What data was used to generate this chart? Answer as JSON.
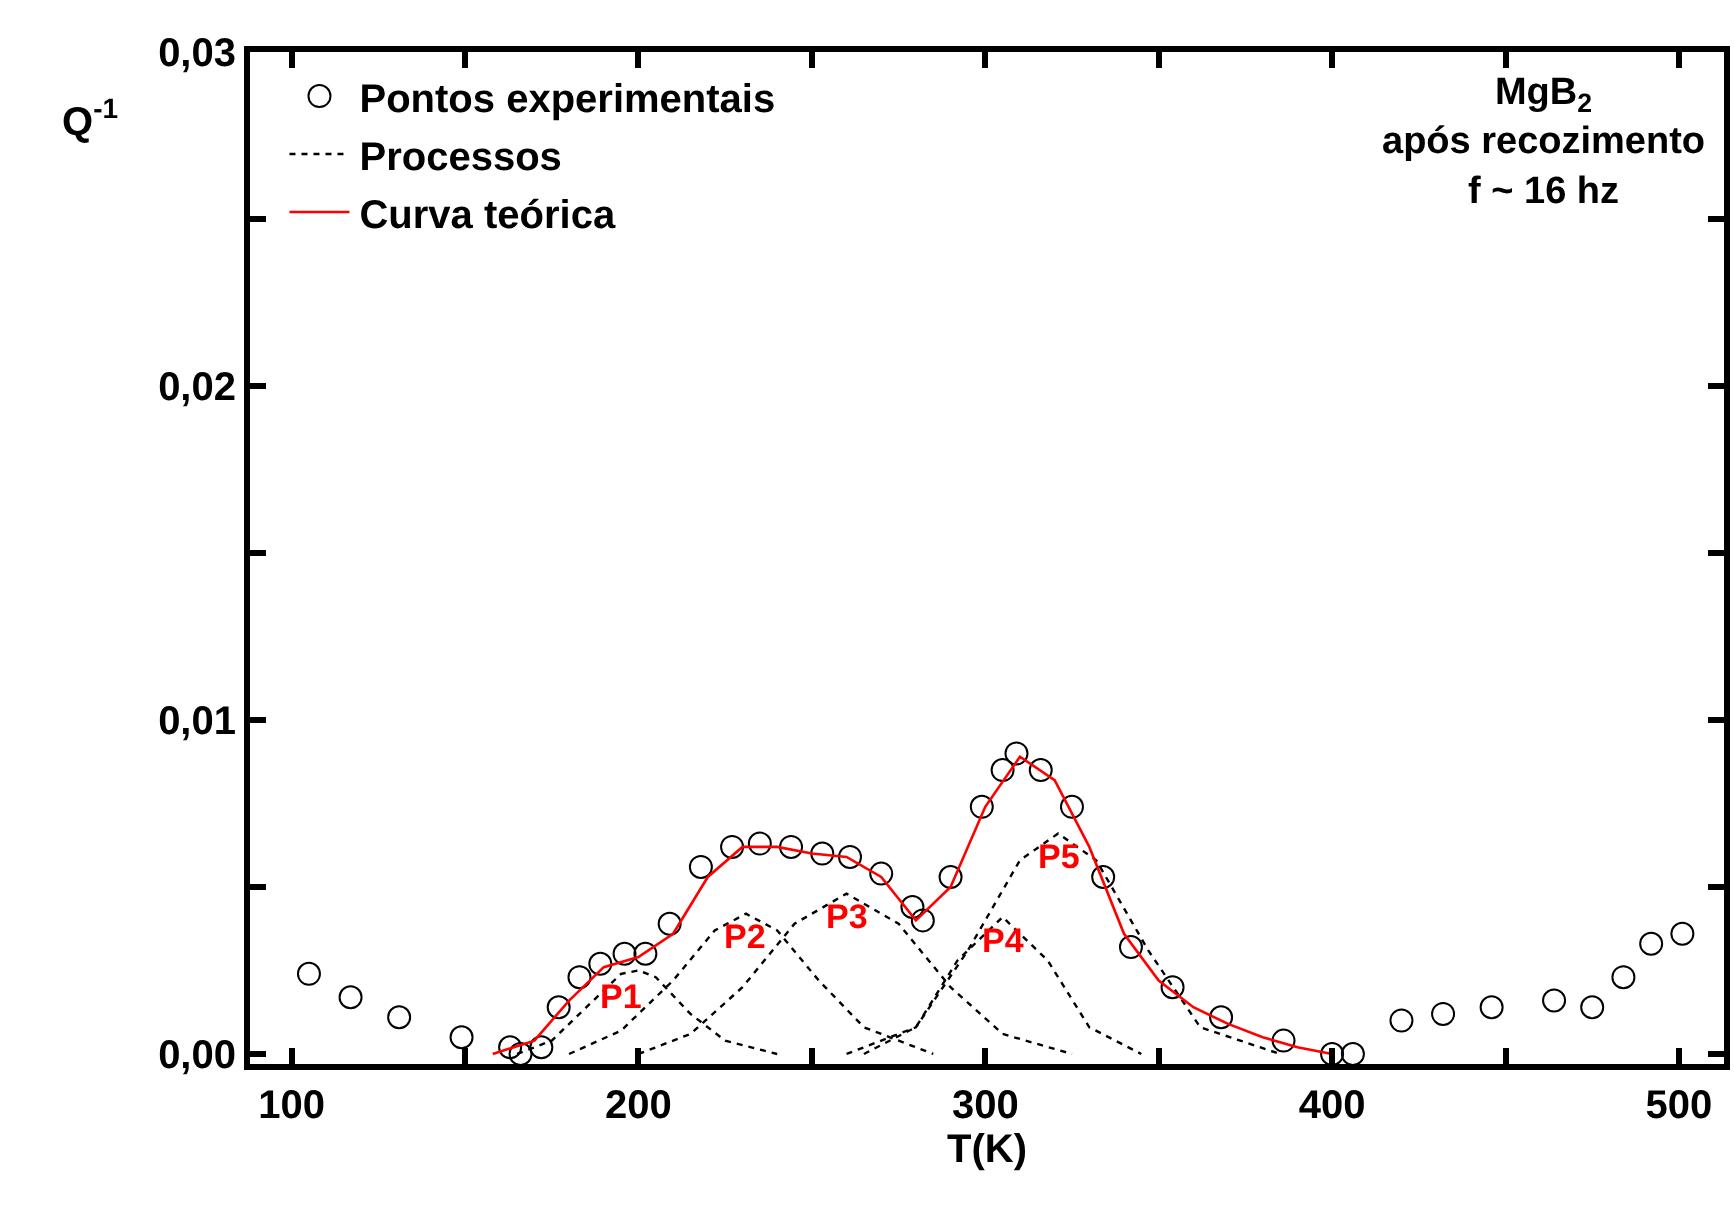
{
  "chart_data": {
    "type": "scatter",
    "xlabel": "T(K)",
    "ylabel": "Q$^{-1}$",
    "xlim": [
      88,
      513
    ],
    "ylim": [
      -0.0003,
      0.03
    ],
    "xticks": [
      100,
      {
        "value": 150,
        "label": null
      },
      200,
      {
        "value": 250,
        "label": null
      },
      300,
      {
        "value": 350,
        "label": null
      },
      400,
      {
        "value": 450,
        "label": null
      },
      500
    ],
    "yticks": [
      {
        "value": 0,
        "label": "0,00"
      },
      {
        "value": 0.005,
        "label": null
      },
      {
        "value": 0.01,
        "label": "0,01"
      },
      {
        "value": 0.015,
        "label": null
      },
      {
        "value": 0.02,
        "label": "0,02"
      },
      {
        "value": 0.025,
        "label": null
      },
      {
        "value": 0.03,
        "label": "0,03"
      }
    ],
    "grid": false,
    "legend": "top left",
    "series": [
      {
        "name": "Pontos experimentais",
        "marker": "circle",
        "color": "#000000",
        "x": [
          105,
          117,
          131,
          149,
          163,
          166,
          172,
          177,
          183,
          189,
          196,
          202,
          209,
          218,
          227,
          235,
          244,
          253,
          261,
          270,
          279,
          282,
          290,
          299,
          305,
          309,
          316,
          325,
          334,
          342,
          354,
          368,
          386,
          400,
          406,
          420,
          432,
          446,
          464,
          475,
          484,
          492,
          501
        ],
        "values": [
          0.0024,
          0.0017,
          0.0011,
          0.0005,
          0.0002,
          0.0,
          0.0002,
          0.0014,
          0.0023,
          0.0027,
          0.003,
          0.003,
          0.0039,
          0.0056,
          0.0062,
          0.0063,
          0.0062,
          0.006,
          0.0059,
          0.0054,
          0.0044,
          0.004,
          0.0053,
          0.0074,
          0.0085,
          0.009,
          0.0085,
          0.0074,
          0.0053,
          0.0032,
          0.002,
          0.0011,
          0.0004,
          0.0,
          0.0,
          0.001,
          0.0012,
          0.0014,
          0.0016,
          0.0014,
          0.0023,
          0.0033,
          0.0036
        ]
      },
      {
        "name": "Processos",
        "type": "line",
        "line_style": "dotted",
        "color": "#000000",
        "x": [
          165,
          175,
          185,
          195,
          200,
          205,
          215,
          225,
          240
        ],
        "values": [
          0,
          0.0004,
          0.0014,
          0.0024,
          0.0025,
          0.0023,
          0.0012,
          0.0004,
          0
        ]
      },
      {
        "type": "line",
        "line_style": "dotted",
        "color": "#000000",
        "x": [
          180,
          195,
          210,
          222,
          231,
          240,
          252,
          265,
          285
        ],
        "values": [
          0,
          0.0007,
          0.0022,
          0.0037,
          0.0042,
          0.0037,
          0.0022,
          0.0008,
          0
        ]
      },
      {
        "type": "line",
        "line_style": "dotted",
        "color": "#000000",
        "x": [
          200,
          215,
          230,
          245,
          260,
          275,
          290,
          305,
          325
        ],
        "values": [
          0,
          0.0006,
          0.002,
          0.0039,
          0.0048,
          0.0039,
          0.002,
          0.0006,
          0
        ]
      },
      {
        "type": "line",
        "line_style": "dotted",
        "color": "#000000",
        "x": [
          265,
          280,
          292,
          305,
          318,
          330,
          345
        ],
        "values": [
          0,
          0.0008,
          0.0028,
          0.0041,
          0.0028,
          0.0008,
          0
        ]
      },
      {
        "type": "line",
        "line_style": "dotted",
        "color": "#000000",
        "x": [
          260,
          280,
          295,
          310,
          321,
          332,
          347,
          362,
          385
        ],
        "values": [
          0,
          0.0008,
          0.0031,
          0.0058,
          0.0066,
          0.0058,
          0.0031,
          0.0008,
          0
        ]
      },
      {
        "name": "Curva teórica",
        "type": "line",
        "line_style": "solid",
        "color": "#ff0000",
        "x": [
          158,
          170,
          180,
          190,
          200,
          210,
          220,
          230,
          240,
          250,
          260,
          270,
          280,
          290,
          300,
          310,
          320,
          330,
          340,
          350,
          360,
          370,
          380,
          390,
          400
        ],
        "values": [
          0,
          0.0004,
          0.0016,
          0.0026,
          0.0029,
          0.0036,
          0.0053,
          0.0062,
          0.0062,
          0.006,
          0.0059,
          0.0053,
          0.004,
          0.005,
          0.0074,
          0.0089,
          0.0082,
          0.0062,
          0.0036,
          0.0022,
          0.0014,
          0.0009,
          0.0005,
          0.0002,
          0
        ]
      }
    ],
    "annotations": [
      {
        "text": "P1",
        "x": 195,
        "y": 0.0024
      },
      {
        "text": "P2",
        "x": 231,
        "y": 0.0042
      },
      {
        "text": "P3",
        "x": 260,
        "y": 0.0048
      },
      {
        "text": "P4",
        "x": 305,
        "y": 0.0041
      },
      {
        "text": "P5",
        "x": 321,
        "y": 0.0066
      },
      "MgB$_{2}$\napós recozimento\nf ~ 16 hz"
    ]
  }
}
